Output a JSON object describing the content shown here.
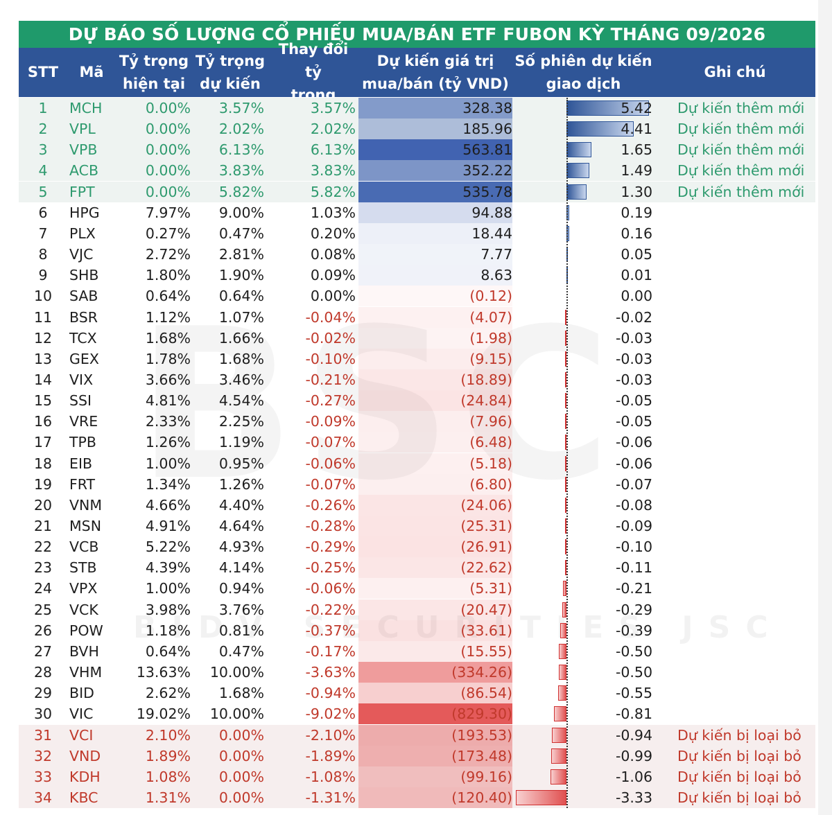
{
  "title": "DỰ BÁO SỐ LƯỢNG CỔ PHIẾU MUA/BÁN ETF FUBON KỲ THÁNG 09/2026",
  "headers": {
    "stt": "STT",
    "ma": "Mã",
    "w_current_1": "Tỷ trọng",
    "w_current_2": "hiện tại",
    "w_expected_1": "Tỷ trọng",
    "w_expected_2": "dự kiến",
    "w_change_1": "Thay đổi tỷ",
    "w_change_2": "trọng",
    "value_1": "Dự kiến giá trị",
    "value_2": "mua/bán (tỷ VND)",
    "sessions_1": "Số phiên dự kiến",
    "sessions_2": "giao dịch",
    "note": "Ghi chú"
  },
  "watermark": {
    "logo": "BSC",
    "text": "BIDV SECURITIES JSC"
  },
  "colors": {
    "title_bg": "#1f9a6b",
    "header_bg": "#2f5597",
    "add_text": "#2e9a6e",
    "remove_text": "#c0392b",
    "positive_bar": "#2f5597",
    "negative_bar": "#e05050"
  },
  "rows": [
    {
      "stt": "1",
      "ma": "MCH",
      "w1": "0.00%",
      "w2": "3.57%",
      "dw": "3.57%",
      "val": "328.38",
      "v": 328.38,
      "ses": "5.42",
      "s": 5.42,
      "note": "Dự kiến thêm mới",
      "type": "add"
    },
    {
      "stt": "2",
      "ma": "VPL",
      "w1": "0.00%",
      "w2": "2.02%",
      "dw": "2.02%",
      "val": "185.96",
      "v": 185.96,
      "ses": "4.41",
      "s": 4.41,
      "note": "Dự kiến thêm mới",
      "type": "add"
    },
    {
      "stt": "3",
      "ma": "VPB",
      "w1": "0.00%",
      "w2": "6.13%",
      "dw": "6.13%",
      "val": "563.81",
      "v": 563.81,
      "ses": "1.65",
      "s": 1.65,
      "note": "Dự kiến thêm mới",
      "type": "add"
    },
    {
      "stt": "4",
      "ma": "ACB",
      "w1": "0.00%",
      "w2": "3.83%",
      "dw": "3.83%",
      "val": "352.22",
      "v": 352.22,
      "ses": "1.49",
      "s": 1.49,
      "note": "Dự kiến thêm mới",
      "type": "add"
    },
    {
      "stt": "5",
      "ma": "FPT",
      "w1": "0.00%",
      "w2": "5.82%",
      "dw": "5.82%",
      "val": "535.78",
      "v": 535.78,
      "ses": "1.30",
      "s": 1.3,
      "note": "Dự kiến thêm mới",
      "type": "add"
    },
    {
      "stt": "6",
      "ma": "HPG",
      "w1": "7.97%",
      "w2": "9.00%",
      "dw": "1.03%",
      "val": "94.88",
      "v": 94.88,
      "ses": "0.19",
      "s": 0.19,
      "note": "",
      "type": "norm"
    },
    {
      "stt": "7",
      "ma": "PLX",
      "w1": "0.27%",
      "w2": "0.47%",
      "dw": "0.20%",
      "val": "18.44",
      "v": 18.44,
      "ses": "0.16",
      "s": 0.16,
      "note": "",
      "type": "norm"
    },
    {
      "stt": "8",
      "ma": "VJC",
      "w1": "2.72%",
      "w2": "2.81%",
      "dw": "0.08%",
      "val": "7.77",
      "v": 7.77,
      "ses": "0.05",
      "s": 0.05,
      "note": "",
      "type": "norm"
    },
    {
      "stt": "9",
      "ma": "SHB",
      "w1": "1.80%",
      "w2": "1.90%",
      "dw": "0.09%",
      "val": "8.63",
      "v": 8.63,
      "ses": "0.01",
      "s": 0.01,
      "note": "",
      "type": "norm"
    },
    {
      "stt": "10",
      "ma": "SAB",
      "w1": "0.64%",
      "w2": "0.64%",
      "dw": "0.00%",
      "val": "(0.12)",
      "v": -0.12,
      "ses": "0.00",
      "s": 0.0,
      "note": "",
      "type": "norm"
    },
    {
      "stt": "11",
      "ma": "BSR",
      "w1": "1.12%",
      "w2": "1.07%",
      "dw": "-0.04%",
      "val": "(4.07)",
      "v": -4.07,
      "ses": "-0.02",
      "s": -0.02,
      "note": "",
      "type": "norm"
    },
    {
      "stt": "12",
      "ma": "TCX",
      "w1": "1.68%",
      "w2": "1.66%",
      "dw": "-0.02%",
      "val": "(1.98)",
      "v": -1.98,
      "ses": "-0.03",
      "s": -0.03,
      "note": "",
      "type": "norm"
    },
    {
      "stt": "13",
      "ma": "GEX",
      "w1": "1.78%",
      "w2": "1.68%",
      "dw": "-0.10%",
      "val": "(9.15)",
      "v": -9.15,
      "ses": "-0.03",
      "s": -0.03,
      "note": "",
      "type": "norm"
    },
    {
      "stt": "14",
      "ma": "VIX",
      "w1": "3.66%",
      "w2": "3.46%",
      "dw": "-0.21%",
      "val": "(18.89)",
      "v": -18.89,
      "ses": "-0.03",
      "s": -0.03,
      "note": "",
      "type": "norm"
    },
    {
      "stt": "15",
      "ma": "SSI",
      "w1": "4.81%",
      "w2": "4.54%",
      "dw": "-0.27%",
      "val": "(24.84)",
      "v": -24.84,
      "ses": "-0.05",
      "s": -0.05,
      "note": "",
      "type": "norm"
    },
    {
      "stt": "16",
      "ma": "VRE",
      "w1": "2.33%",
      "w2": "2.25%",
      "dw": "-0.09%",
      "val": "(7.96)",
      "v": -7.96,
      "ses": "-0.05",
      "s": -0.05,
      "note": "",
      "type": "norm"
    },
    {
      "stt": "17",
      "ma": "TPB",
      "w1": "1.26%",
      "w2": "1.19%",
      "dw": "-0.07%",
      "val": "(6.48)",
      "v": -6.48,
      "ses": "-0.06",
      "s": -0.06,
      "note": "",
      "type": "norm"
    },
    {
      "stt": "18",
      "ma": "EIB",
      "w1": "1.00%",
      "w2": "0.95%",
      "dw": "-0.06%",
      "val": "(5.18)",
      "v": -5.18,
      "ses": "-0.06",
      "s": -0.06,
      "note": "",
      "type": "norm"
    },
    {
      "stt": "19",
      "ma": "FRT",
      "w1": "1.34%",
      "w2": "1.26%",
      "dw": "-0.07%",
      "val": "(6.80)",
      "v": -6.8,
      "ses": "-0.07",
      "s": -0.07,
      "note": "",
      "type": "norm"
    },
    {
      "stt": "20",
      "ma": "VNM",
      "w1": "4.66%",
      "w2": "4.40%",
      "dw": "-0.26%",
      "val": "(24.06)",
      "v": -24.06,
      "ses": "-0.08",
      "s": -0.08,
      "note": "",
      "type": "norm"
    },
    {
      "stt": "21",
      "ma": "MSN",
      "w1": "4.91%",
      "w2": "4.64%",
      "dw": "-0.28%",
      "val": "(25.31)",
      "v": -25.31,
      "ses": "-0.09",
      "s": -0.09,
      "note": "",
      "type": "norm"
    },
    {
      "stt": "22",
      "ma": "VCB",
      "w1": "5.22%",
      "w2": "4.93%",
      "dw": "-0.29%",
      "val": "(26.91)",
      "v": -26.91,
      "ses": "-0.10",
      "s": -0.1,
      "note": "",
      "type": "norm"
    },
    {
      "stt": "23",
      "ma": "STB",
      "w1": "4.39%",
      "w2": "4.14%",
      "dw": "-0.25%",
      "val": "(22.62)",
      "v": -22.62,
      "ses": "-0.11",
      "s": -0.11,
      "note": "",
      "type": "norm"
    },
    {
      "stt": "24",
      "ma": "VPX",
      "w1": "1.00%",
      "w2": "0.94%",
      "dw": "-0.06%",
      "val": "(5.31)",
      "v": -5.31,
      "ses": "-0.21",
      "s": -0.21,
      "note": "",
      "type": "norm"
    },
    {
      "stt": "25",
      "ma": "VCK",
      "w1": "3.98%",
      "w2": "3.76%",
      "dw": "-0.22%",
      "val": "(20.47)",
      "v": -20.47,
      "ses": "-0.29",
      "s": -0.29,
      "note": "",
      "type": "norm"
    },
    {
      "stt": "26",
      "ma": "POW",
      "w1": "1.18%",
      "w2": "0.81%",
      "dw": "-0.37%",
      "val": "(33.61)",
      "v": -33.61,
      "ses": "-0.39",
      "s": -0.39,
      "note": "",
      "type": "norm"
    },
    {
      "stt": "27",
      "ma": "BVH",
      "w1": "0.64%",
      "w2": "0.47%",
      "dw": "-0.17%",
      "val": "(15.55)",
      "v": -15.55,
      "ses": "-0.50",
      "s": -0.5,
      "note": "",
      "type": "norm"
    },
    {
      "stt": "28",
      "ma": "VHM",
      "w1": "13.63%",
      "w2": "10.00%",
      "dw": "-3.63%",
      "val": "(334.26)",
      "v": -334.26,
      "ses": "-0.50",
      "s": -0.5,
      "note": "",
      "type": "norm"
    },
    {
      "stt": "29",
      "ma": "BID",
      "w1": "2.62%",
      "w2": "1.68%",
      "dw": "-0.94%",
      "val": "(86.54)",
      "v": -86.54,
      "ses": "-0.55",
      "s": -0.55,
      "note": "",
      "type": "norm"
    },
    {
      "stt": "30",
      "ma": "VIC",
      "w1": "19.02%",
      "w2": "10.00%",
      "dw": "-9.02%",
      "val": "(829.30)",
      "v": -829.3,
      "ses": "-0.81",
      "s": -0.81,
      "note": "",
      "type": "norm"
    },
    {
      "stt": "31",
      "ma": "VCI",
      "w1": "2.10%",
      "w2": "0.00%",
      "dw": "-2.10%",
      "val": "(193.53)",
      "v": -193.53,
      "ses": "-0.94",
      "s": -0.94,
      "note": "Dự kiến bị loại bỏ",
      "type": "rem"
    },
    {
      "stt": "32",
      "ma": "VND",
      "w1": "1.89%",
      "w2": "0.00%",
      "dw": "-1.89%",
      "val": "(173.48)",
      "v": -173.48,
      "ses": "-0.99",
      "s": -0.99,
      "note": "Dự kiến bị loại bỏ",
      "type": "rem"
    },
    {
      "stt": "33",
      "ma": "KDH",
      "w1": "1.08%",
      "w2": "0.00%",
      "dw": "-1.08%",
      "val": "(99.16)",
      "v": -99.16,
      "ses": "-1.06",
      "s": -1.06,
      "note": "Dự kiến bị loại bỏ",
      "type": "rem"
    },
    {
      "stt": "34",
      "ma": "KBC",
      "w1": "1.31%",
      "w2": "0.00%",
      "dw": "-1.31%",
      "val": "(120.40)",
      "v": -120.4,
      "ses": "-3.33",
      "s": -3.33,
      "note": "Dự kiến bị loại bỏ",
      "type": "rem"
    }
  ]
}
